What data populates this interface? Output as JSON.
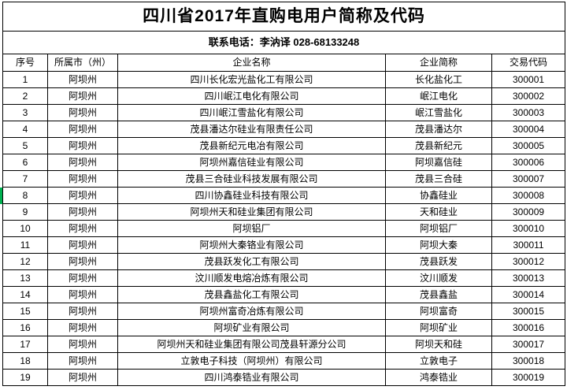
{
  "title": "四川省2017年直购电用户简称及代码",
  "contact_line": "联系电话：李汭译 028-68133248",
  "table": {
    "headers": [
      "序号",
      "所属市（州）",
      "企业名称",
      "企业简称",
      "交易代码"
    ],
    "rows": [
      [
        "1",
        "阿坝州",
        "四川长化宏光盐化工有限公司",
        "长化盐化工",
        "300001"
      ],
      [
        "2",
        "阿坝州",
        "四川岷江电化有限公司",
        "岷江电化",
        "300002"
      ],
      [
        "3",
        "阿坝州",
        "四川岷江雪盐化有限公司",
        "岷江雪盐化",
        "300003"
      ],
      [
        "4",
        "阿坝州",
        "茂县潘达尔硅业有限责任公司",
        "茂县潘达尔",
        "300004"
      ],
      [
        "5",
        "阿坝州",
        "茂县新纪元电冶有限公司",
        "茂县新纪元",
        "300005"
      ],
      [
        "6",
        "阿坝州",
        "阿坝州嘉信硅业有限公司",
        "阿坝嘉信硅",
        "300006"
      ],
      [
        "7",
        "阿坝州",
        "茂县三合硅业科技发展有限公司",
        "茂县三合硅",
        "300007"
      ],
      [
        "8",
        "阿坝州",
        "四川协鑫硅业科技有限公司",
        "协鑫硅业",
        "300008"
      ],
      [
        "9",
        "阿坝州",
        "阿坝州天和硅业集团有限公司",
        "天和硅业",
        "300009"
      ],
      [
        "10",
        "阿坝州",
        "阿坝铝厂",
        "阿坝铝厂",
        "300010"
      ],
      [
        "11",
        "阿坝州",
        "阿坝州大秦铬业有限公司",
        "阿坝大秦",
        "300011"
      ],
      [
        "12",
        "阿坝州",
        "茂县跃发化工有限公司",
        "茂县跃发",
        "300012"
      ],
      [
        "13",
        "阿坝州",
        "汶川顺发电熔冶炼有限公司",
        "汶川顺发",
        "300013"
      ],
      [
        "14",
        "阿坝州",
        "茂县鑫盐化工有限公司",
        "茂县鑫盐",
        "300014"
      ],
      [
        "15",
        "阿坝州",
        "阿坝州富奇冶炼有限公司",
        "阿坝富奇",
        "300015"
      ],
      [
        "16",
        "阿坝州",
        "阿坝矿业有限公司",
        "阿坝矿业",
        "300016"
      ],
      [
        "17",
        "阿坝州",
        "阿坝州天和硅业集团有限公司茂县轩源分公司",
        "阿坝天和硅",
        "300017"
      ],
      [
        "18",
        "阿坝州",
        "立敦电子科技（阿坝州）有限公司",
        "立敦电子",
        "300018"
      ],
      [
        "19",
        "阿坝州",
        "四川鸿泰锆业有限公司",
        "鸿泰锆业",
        "300019"
      ]
    ]
  },
  "selection": {
    "selected_row_seq": "8",
    "marker_color": "#00b050"
  },
  "colors": {
    "grid_line": "#000000",
    "background": "#ffffff",
    "text": "#000000"
  }
}
